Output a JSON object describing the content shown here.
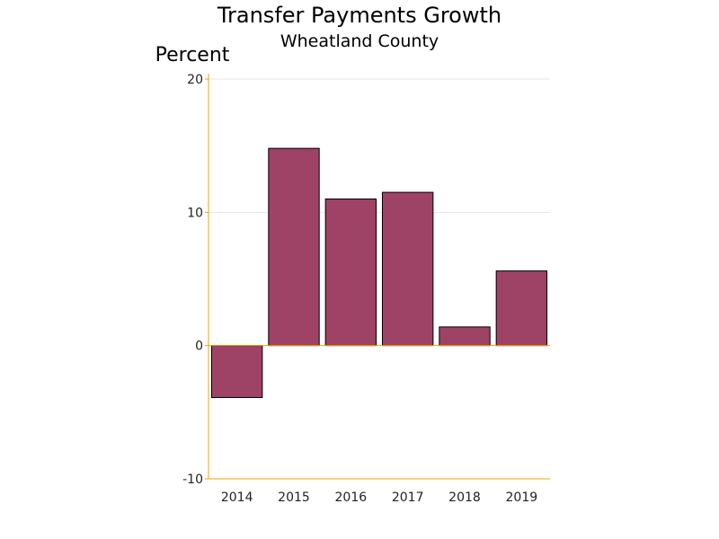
{
  "chart_data": {
    "type": "bar",
    "title": "Transfer Payments Growth",
    "subtitle": "Wheatland County",
    "ylabel": "Percent",
    "xlabel": "",
    "categories": [
      "2014",
      "2015",
      "2016",
      "2017",
      "2018",
      "2019"
    ],
    "values": [
      -3.9,
      14.8,
      11.0,
      11.5,
      1.4,
      5.6
    ],
    "ylim": [
      -10,
      20
    ],
    "yticks": [
      -10,
      0,
      10,
      20
    ],
    "grid": true,
    "legend": "none",
    "colors": {
      "bar": "#9e4266",
      "bar_outline": "#000000",
      "axis": "#f0a000",
      "grid": "#e6e6e6"
    }
  }
}
